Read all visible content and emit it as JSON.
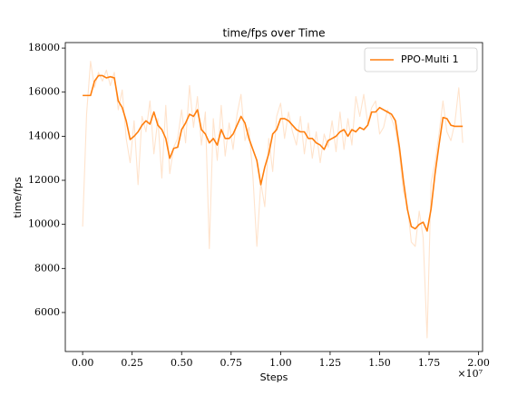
{
  "chart_data": {
    "type": "line",
    "title": "time/fps over Time",
    "xlabel": "Steps",
    "ylabel": "time/fps",
    "x_offset_label": "×10⁷",
    "x": [
      0.0,
      0.02,
      0.04,
      0.06,
      0.08,
      0.1,
      0.12,
      0.14,
      0.16,
      0.18,
      0.2,
      0.22,
      0.24,
      0.26,
      0.28,
      0.3,
      0.32,
      0.34,
      0.36,
      0.38,
      0.4,
      0.42,
      0.44,
      0.46,
      0.48,
      0.5,
      0.52,
      0.54,
      0.56,
      0.58,
      0.6,
      0.62,
      0.64,
      0.66,
      0.68,
      0.7,
      0.72,
      0.74,
      0.76,
      0.78,
      0.8,
      0.82,
      0.84,
      0.86,
      0.88,
      0.9,
      0.92,
      0.94,
      0.96,
      0.98,
      1.0,
      1.02,
      1.04,
      1.06,
      1.08,
      1.1,
      1.12,
      1.14,
      1.16,
      1.18,
      1.2,
      1.22,
      1.24,
      1.26,
      1.28,
      1.3,
      1.32,
      1.34,
      1.36,
      1.38,
      1.4,
      1.42,
      1.44,
      1.46,
      1.48,
      1.5,
      1.52,
      1.54,
      1.56,
      1.58,
      1.6,
      1.62,
      1.64,
      1.66,
      1.68,
      1.7,
      1.72,
      1.74,
      1.76,
      1.78,
      1.8,
      1.82,
      1.84,
      1.86,
      1.88,
      1.9,
      1.92
    ],
    "series": [
      {
        "color": "#ffe3cc",
        "values": [
          9900,
          15000,
          17400,
          16200,
          16900,
          16500,
          17000,
          16300,
          16900,
          15200,
          16100,
          13900,
          12800,
          14700,
          11800,
          14900,
          14200,
          15600,
          13200,
          14800,
          12100,
          15400,
          12300,
          13500,
          13900,
          15200,
          13700,
          16300,
          14400,
          15800,
          13600,
          15100,
          8900,
          14800,
          12900,
          15400,
          13100,
          14600,
          13400,
          15000,
          15900,
          13800,
          14400,
          12200,
          9000,
          11900,
          10800,
          13900,
          12400,
          14900,
          15500,
          13900,
          15100,
          14200,
          13600,
          14900,
          13200,
          14600,
          13000,
          14200,
          12800,
          14100,
          13500,
          14700,
          13300,
          15100,
          13400,
          14800,
          13600,
          15800,
          14900,
          15900,
          14600,
          15300,
          15600,
          14100,
          14400,
          15200,
          14800,
          14300,
          13200,
          11500,
          10900,
          9200,
          9000,
          10600,
          9400,
          4850,
          11900,
          12800,
          14100,
          15600,
          14200,
          13800,
          14600,
          16200,
          13700
        ]
      },
      {
        "name": "PPO-Multi 1",
        "color": "#ff7f0e",
        "values": [
          15850,
          15850,
          15850,
          16500,
          16750,
          16750,
          16650,
          16700,
          16650,
          15600,
          15300,
          14700,
          13850,
          14000,
          14200,
          14500,
          14700,
          14550,
          15100,
          14500,
          14300,
          13900,
          13000,
          13450,
          13500,
          14300,
          14600,
          15000,
          14900,
          15200,
          14300,
          14100,
          13700,
          13900,
          13600,
          14300,
          13900,
          13900,
          14100,
          14500,
          14900,
          14600,
          13900,
          13400,
          12900,
          11800,
          12600,
          13200,
          14100,
          14300,
          14800,
          14800,
          14700,
          14500,
          14300,
          14200,
          14200,
          13900,
          13900,
          13700,
          13600,
          13400,
          13800,
          13900,
          14000,
          14200,
          14300,
          14000,
          14300,
          14200,
          14400,
          14300,
          14500,
          15100,
          15100,
          15300,
          15200,
          15100,
          15000,
          14700,
          13500,
          12000,
          10700,
          9900,
          9800,
          10000,
          10100,
          9700,
          10700,
          12300,
          13600,
          14850,
          14800,
          14500,
          14450,
          14450,
          14450
        ]
      }
    ],
    "xlim": [
      -0.0875,
      2.02
    ],
    "ylim": [
      4230,
      18250
    ],
    "xticks": [
      {
        "value": 0,
        "label": "0.00"
      },
      {
        "value": 0.25,
        "label": "0.25"
      },
      {
        "value": 0.5,
        "label": "0.50"
      },
      {
        "value": 0.75,
        "label": "0.75"
      },
      {
        "value": 1,
        "label": "1.00"
      },
      {
        "value": 1.25,
        "label": "1.25"
      },
      {
        "value": 1.5,
        "label": "1.50"
      },
      {
        "value": 1.75,
        "label": "1.75"
      },
      {
        "value": 2,
        "label": "2.00"
      }
    ],
    "yticks": [
      6000,
      8000,
      10000,
      12000,
      14000,
      16000,
      18000
    ],
    "legend": "upper right"
  }
}
